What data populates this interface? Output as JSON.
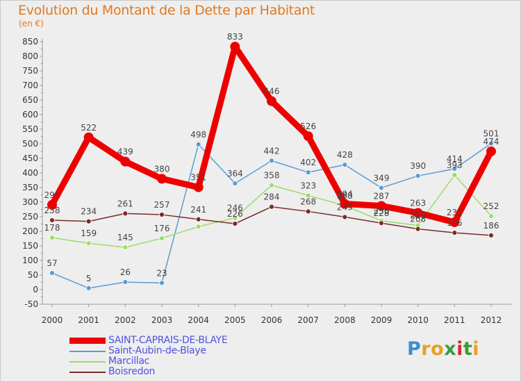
{
  "header": {
    "title": "Evolution du Montant de la Dette par Habitant",
    "unit": "(en €)"
  },
  "brand": {
    "letters": [
      "P",
      "r",
      "o",
      "x",
      "i",
      "t",
      "i"
    ],
    "colors": [
      "#3b8fd0",
      "#e8a020",
      "#e8a020",
      "#3a9c3a",
      "#d03030",
      "#3a9c3a",
      "#e8a020"
    ]
  },
  "chart_data": {
    "type": "line",
    "title": "Evolution du Montant de la Dette par Habitant",
    "subtitle": "(en €)",
    "x": [
      "2000",
      "2001",
      "2002",
      "2003",
      "2004",
      "2005",
      "2006",
      "2007",
      "2008",
      "2009",
      "2010",
      "2011",
      "2012"
    ],
    "yticks": [
      "-50",
      "0",
      "50",
      "100",
      "150",
      "200",
      "250",
      "300",
      "350",
      "400",
      "450",
      "500",
      "550",
      "600",
      "650",
      "700",
      "750",
      "800",
      "850"
    ],
    "ylim": [
      -50,
      850
    ],
    "grid": false,
    "legend_position": "bottom-left",
    "series": [
      {
        "name": "SAINT-CAPRAIS-DE-BLAYE",
        "color": "#ee0000",
        "values": [
          291,
          522,
          439,
          380,
          351,
          833,
          646,
          526,
          294,
          287,
          263,
          231,
          474
        ]
      },
      {
        "name": "Saint-Aubin-de-Blaye",
        "color": "#5b9bd5",
        "values": [
          57,
          5,
          26,
          23,
          498,
          364,
          442,
          402,
          428,
          349,
          390,
          414,
          501
        ]
      },
      {
        "name": "Marcillac",
        "color": "#99dd66",
        "values": [
          178,
          159,
          145,
          176,
          216,
          246,
          358,
          323,
          288,
          236,
          220,
          393,
          252
        ]
      },
      {
        "name": "Boisredon",
        "color": "#7a2a2a",
        "values": [
          238,
          234,
          261,
          257,
          241,
          226,
          284,
          268,
          249,
          228,
          208,
          195,
          186
        ]
      }
    ],
    "data_labels": [
      [
        "291",
        "522",
        "439",
        "380",
        "351",
        "833",
        "646",
        "526",
        "294",
        "287",
        "263",
        "231",
        "474"
      ],
      [
        "57",
        "5",
        "26",
        "23",
        "498",
        "364",
        "442",
        "402",
        "428",
        "349",
        "390",
        "414",
        "501"
      ],
      [
        "178",
        "159",
        "145",
        "176",
        "",
        "246",
        "358",
        "323",
        "288",
        "236",
        "220",
        "393",
        "252"
      ],
      [
        "238",
        "234",
        "261",
        "257",
        "241",
        "226",
        "284",
        "268",
        "249",
        "228",
        "208",
        "195",
        "186"
      ]
    ]
  }
}
